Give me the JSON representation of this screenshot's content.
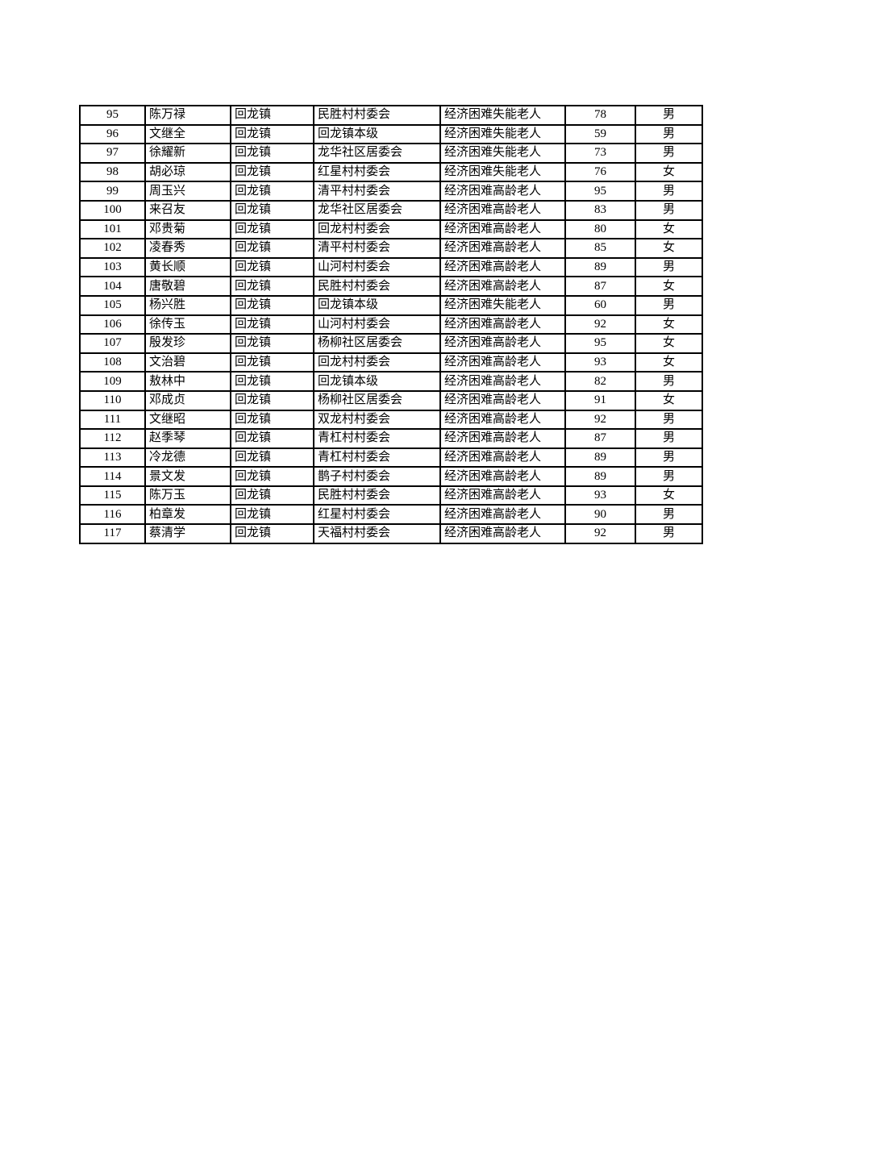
{
  "page": {
    "background_color": "#ffffff",
    "text_color": "#000000",
    "border_color": "#000000"
  },
  "table": {
    "rows": [
      {
        "no": "95",
        "name": "陈万禄",
        "town": "回龙镇",
        "village": "民胜村村委会",
        "category": "经济困难失能老人",
        "age": "78",
        "gender": "男"
      },
      {
        "no": "96",
        "name": "文继全",
        "town": "回龙镇",
        "village": "回龙镇本级",
        "category": "经济困难失能老人",
        "age": "59",
        "gender": "男"
      },
      {
        "no": "97",
        "name": "徐耀新",
        "town": "回龙镇",
        "village": "龙华社区居委会",
        "category": "经济困难失能老人",
        "age": "73",
        "gender": "男"
      },
      {
        "no": "98",
        "name": "胡必琼",
        "town": "回龙镇",
        "village": "红星村村委会",
        "category": "经济困难失能老人",
        "age": "76",
        "gender": "女"
      },
      {
        "no": "99",
        "name": "周玉兴",
        "town": "回龙镇",
        "village": "清平村村委会",
        "category": "经济困难高龄老人",
        "age": "95",
        "gender": "男"
      },
      {
        "no": "100",
        "name": "来召友",
        "town": "回龙镇",
        "village": "龙华社区居委会",
        "category": "经济困难高龄老人",
        "age": "83",
        "gender": "男"
      },
      {
        "no": "101",
        "name": "邓贵菊",
        "town": "回龙镇",
        "village": "回龙村村委会",
        "category": "经济困难高龄老人",
        "age": "80",
        "gender": "女"
      },
      {
        "no": "102",
        "name": "凌春秀",
        "town": "回龙镇",
        "village": "清平村村委会",
        "category": "经济困难高龄老人",
        "age": "85",
        "gender": "女"
      },
      {
        "no": "103",
        "name": "黄长顺",
        "town": "回龙镇",
        "village": "山河村村委会",
        "category": "经济困难高龄老人",
        "age": "89",
        "gender": "男"
      },
      {
        "no": "104",
        "name": "唐敬碧",
        "town": "回龙镇",
        "village": "民胜村村委会",
        "category": "经济困难高龄老人",
        "age": "87",
        "gender": "女"
      },
      {
        "no": "105",
        "name": "杨兴胜",
        "town": "回龙镇",
        "village": "回龙镇本级",
        "category": "经济困难失能老人",
        "age": "60",
        "gender": "男"
      },
      {
        "no": "106",
        "name": "徐传玉",
        "town": "回龙镇",
        "village": "山河村村委会",
        "category": "经济困难高龄老人",
        "age": "92",
        "gender": "女"
      },
      {
        "no": "107",
        "name": "殷发珍",
        "town": "回龙镇",
        "village": "杨柳社区居委会",
        "category": "经济困难高龄老人",
        "age": "95",
        "gender": "女"
      },
      {
        "no": "108",
        "name": "文治碧",
        "town": "回龙镇",
        "village": "回龙村村委会",
        "category": "经济困难高龄老人",
        "age": "93",
        "gender": "女"
      },
      {
        "no": "109",
        "name": "敖林中",
        "town": "回龙镇",
        "village": "回龙镇本级",
        "category": "经济困难高龄老人",
        "age": "82",
        "gender": "男"
      },
      {
        "no": "110",
        "name": "邓成贞",
        "town": "回龙镇",
        "village": "杨柳社区居委会",
        "category": "经济困难高龄老人",
        "age": "91",
        "gender": "女"
      },
      {
        "no": "111",
        "name": "文继昭",
        "town": "回龙镇",
        "village": "双龙村村委会",
        "category": "经济困难高龄老人",
        "age": "92",
        "gender": "男"
      },
      {
        "no": "112",
        "name": "赵季琴",
        "town": "回龙镇",
        "village": "青杠村村委会",
        "category": "经济困难高龄老人",
        "age": "87",
        "gender": "男"
      },
      {
        "no": "113",
        "name": "冷龙德",
        "town": "回龙镇",
        "village": "青杠村村委会",
        "category": "经济困难高龄老人",
        "age": "89",
        "gender": "男"
      },
      {
        "no": "114",
        "name": "景文发",
        "town": "回龙镇",
        "village": "鹊子村村委会",
        "category": "经济困难高龄老人",
        "age": "89",
        "gender": "男"
      },
      {
        "no": "115",
        "name": "陈万玉",
        "town": "回龙镇",
        "village": "民胜村村委会",
        "category": "经济困难高龄老人",
        "age": "93",
        "gender": "女"
      },
      {
        "no": "116",
        "name": "柏章发",
        "town": "回龙镇",
        "village": "红星村村委会",
        "category": "经济困难高龄老人",
        "age": "90",
        "gender": "男"
      },
      {
        "no": "117",
        "name": "蔡清学",
        "town": "回龙镇",
        "village": "天福村村委会",
        "category": "经济困难高龄老人",
        "age": "92",
        "gender": "男"
      }
    ]
  }
}
